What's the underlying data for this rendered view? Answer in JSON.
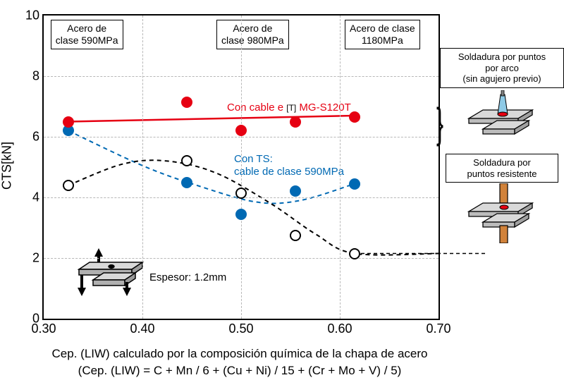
{
  "chart": {
    "type": "scatter",
    "xlim": [
      0.3,
      0.7
    ],
    "ylim": [
      0,
      10
    ],
    "xtick_labels": [
      "0.30",
      "0.40",
      "0.50",
      "0.60",
      "0.70"
    ],
    "xtick_vals": [
      0.3,
      0.4,
      0.5,
      0.6,
      0.7
    ],
    "ytick_vals": [
      0,
      2,
      4,
      6,
      8,
      10
    ],
    "grid_color": "#b7b7b7",
    "background_color": "#ffffff",
    "border_color": "#000000",
    "ylabel": "CTS[kN]",
    "xlabel_line1": "Cep. (LIW) calculado por la composición química de la chapa de acero",
    "xlabel_line2": "(Cep. (LIW) = C + Mn / 6 + (Cu + Ni) / 15 + (Cr + Mo + V) / 5)",
    "tick_fontsize": 18,
    "label_fontsize": 18,
    "xlabel_fontsize": 17,
    "regions": [
      {
        "label_l1": "Acero de",
        "label_l2": "clase 590MPa",
        "x": 0.307
      },
      {
        "label_l1": "Acero de",
        "label_l2": "clase 980MPa",
        "x": 0.475
      },
      {
        "label_l1": "Acero de clase",
        "label_l2": "1180MPa",
        "x": 0.605
      }
    ],
    "annotations": {
      "red_prefix": "Con cable e",
      "red_mid": "[T]",
      "red_suffix": "MG-S120T",
      "blue_l1": "Con TS:",
      "blue_l2": "cable de clase 590MPa",
      "thickness": "Espesor: 1.2mm"
    },
    "series": {
      "red": {
        "color": "#e60012",
        "marker": "filled-circle",
        "points": [
          {
            "x": 0.325,
            "y": 6.5
          },
          {
            "x": 0.445,
            "y": 7.15
          },
          {
            "x": 0.5,
            "y": 6.2
          },
          {
            "x": 0.555,
            "y": 6.5
          },
          {
            "x": 0.615,
            "y": 6.65
          }
        ],
        "trend": [
          {
            "x": 0.325,
            "y": 6.5
          },
          {
            "x": 0.62,
            "y": 6.7
          }
        ]
      },
      "blue": {
        "color": "#0069b3",
        "marker": "filled-circle",
        "points": [
          {
            "x": 0.325,
            "y": 6.2
          },
          {
            "x": 0.445,
            "y": 4.5
          },
          {
            "x": 0.5,
            "y": 3.45
          },
          {
            "x": 0.555,
            "y": 4.2
          },
          {
            "x": 0.615,
            "y": 4.45
          }
        ],
        "trend": [
          {
            "x": 0.325,
            "y": 6.2
          },
          {
            "x": 0.4,
            "y": 5.05
          },
          {
            "x": 0.455,
            "y": 4.4
          },
          {
            "x": 0.515,
            "y": 3.85
          },
          {
            "x": 0.56,
            "y": 3.9
          },
          {
            "x": 0.615,
            "y": 4.45
          }
        ]
      },
      "open": {
        "color": "#000000",
        "marker": "open-circle",
        "points": [
          {
            "x": 0.325,
            "y": 4.4
          },
          {
            "x": 0.445,
            "y": 5.2
          },
          {
            "x": 0.5,
            "y": 4.15
          },
          {
            "x": 0.555,
            "y": 2.75
          },
          {
            "x": 0.615,
            "y": 2.15
          }
        ],
        "trend": [
          {
            "x": 0.325,
            "y": 4.4
          },
          {
            "x": 0.38,
            "y": 5.1
          },
          {
            "x": 0.425,
            "y": 5.2
          },
          {
            "x": 0.475,
            "y": 4.8
          },
          {
            "x": 0.53,
            "y": 3.8
          },
          {
            "x": 0.575,
            "y": 2.8
          },
          {
            "x": 0.615,
            "y": 2.15
          },
          {
            "x": 0.7,
            "y": 2.15
          }
        ]
      }
    },
    "red_line_width": 2.5,
    "blue_line_width": 2,
    "open_line_width": 2
  },
  "side": {
    "box1_l1": "Soldadura por puntos",
    "box1_l2": "por arco",
    "box1_l3": "(sin agujero previo)",
    "box2_l1": "Soldadura por",
    "box2_l2": "puntos resistente"
  },
  "diagram_colors": {
    "plate_fill": "#d9d9d9",
    "plate_stroke": "#000000",
    "arc_cone": "#8ecae6",
    "arc_tip": "#e60012",
    "electrode": "#d1823a"
  }
}
